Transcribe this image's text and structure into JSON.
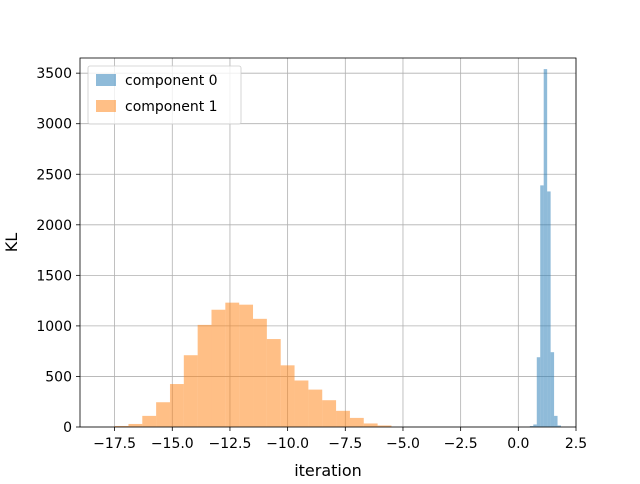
{
  "chart_data": {
    "type": "histogram",
    "title": "",
    "xlabel": "iteration",
    "ylabel": "KL",
    "xlim": [
      -19.0,
      2.5
    ],
    "ylim": [
      0,
      3650
    ],
    "xticks": [
      -17.5,
      -15.0,
      -12.5,
      -10.0,
      -7.5,
      -5.0,
      -2.5,
      0.0,
      2.5
    ],
    "xtick_labels": [
      "−17.5",
      "−15.0",
      "−12.5",
      "−10.0",
      "−7.5",
      "−5.0",
      "−2.5",
      "0.0",
      "2.5"
    ],
    "yticks": [
      0,
      500,
      1000,
      1500,
      2000,
      2500,
      3000,
      3500
    ],
    "ytick_labels": [
      "0",
      "500",
      "1000",
      "1500",
      "2000",
      "2500",
      "3000",
      "3500"
    ],
    "grid": true,
    "legend_position": "top-left",
    "series": [
      {
        "name": "component 0",
        "color": "#1f77b4",
        "alpha": 0.5,
        "bin_edges": [
          0.5,
          0.65,
          0.8,
          0.95,
          1.1,
          1.25,
          1.4,
          1.55,
          1.7,
          1.85
        ],
        "counts": [
          10,
          25,
          690,
          2390,
          3540,
          2330,
          740,
          110,
          15
        ]
      },
      {
        "name": "component 1",
        "color": "#ff7f0e",
        "alpha": 0.5,
        "bin_edges": [
          -17.5,
          -16.9,
          -16.3,
          -15.7,
          -15.1,
          -14.5,
          -13.9,
          -13.3,
          -12.7,
          -12.1,
          -11.5,
          -10.9,
          -10.3,
          -9.7,
          -9.1,
          -8.5,
          -7.9,
          -7.3,
          -6.7,
          -6.1,
          -5.5
        ],
        "counts": [
          10,
          30,
          110,
          245,
          425,
          710,
          1010,
          1160,
          1230,
          1210,
          1070,
          870,
          610,
          460,
          370,
          265,
          160,
          90,
          35,
          15
        ]
      }
    ]
  }
}
